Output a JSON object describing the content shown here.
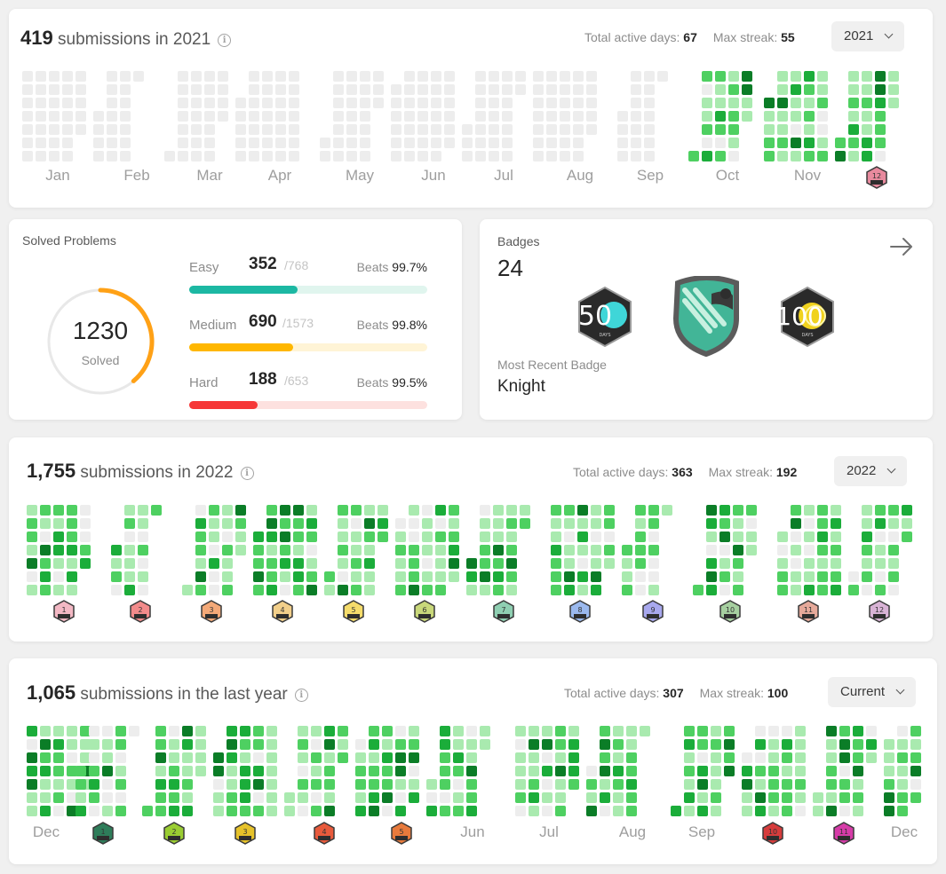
{
  "colors": {
    "level0": "#ededed",
    "level1": "#a9eaaf",
    "level2": "#4ed061",
    "level3": "#1bad3a",
    "level4": "#0b7d27",
    "easy": "#1cb8a3",
    "easy_track": "#e0f5ee",
    "medium": "#ffb700",
    "medium_track": "#fff4d6",
    "hard": "#f63737",
    "hard_track": "#fde1df"
  },
  "cal2021": {
    "count": "419",
    "text": "submissions in 2021",
    "active_label": "Total active days:",
    "active_value": "67",
    "streak_label": "Max streak:",
    "streak_value": "55",
    "dropdown": "2021",
    "months": [
      "Jan",
      "Feb",
      "Mar",
      "Apr",
      "May",
      "Jun",
      "Jul",
      "Aug",
      "Sep",
      "Oct",
      "Nov",
      "12"
    ]
  },
  "solved": {
    "title": "Solved Problems",
    "total": "1230",
    "total_label": "Solved",
    "easy": {
      "label": "Easy",
      "solved": "352",
      "total": "/768",
      "beats_label": "Beats",
      "beats": "99.7%"
    },
    "medium": {
      "label": "Medium",
      "solved": "690",
      "total": "/1573",
      "beats_label": "Beats",
      "beats": "99.8%"
    },
    "hard": {
      "label": "Hard",
      "solved": "188",
      "total": "/653",
      "beats_label": "Beats",
      "beats": "99.5%"
    }
  },
  "badges": {
    "title": "Badges",
    "count": "24",
    "recent_label": "Most Recent Badge",
    "recent_name": "Knight",
    "badge1_text": "50",
    "badge3_text": "100",
    "days_text": "DAYS"
  },
  "cal2022": {
    "count": "1,755",
    "text": "submissions in 2022",
    "active_label": "Total active days:",
    "active_value": "363",
    "streak_label": "Max streak:",
    "streak_value": "192",
    "dropdown": "2022",
    "badges": [
      "1",
      "2",
      "3",
      "4",
      "5",
      "6",
      "7",
      "8",
      "9",
      "10",
      "11",
      "12"
    ]
  },
  "calLast": {
    "count": "1,065",
    "text": "submissions in the last year",
    "active_label": "Total active days:",
    "active_value": "307",
    "streak_label": "Max streak:",
    "streak_value": "100",
    "dropdown": "Current",
    "labels": [
      "Dec",
      "Jun",
      "Jul",
      "Aug",
      "Sep",
      "Dec"
    ],
    "badges": [
      "1",
      "2",
      "3",
      "4",
      "5",
      "10",
      "11"
    ]
  }
}
